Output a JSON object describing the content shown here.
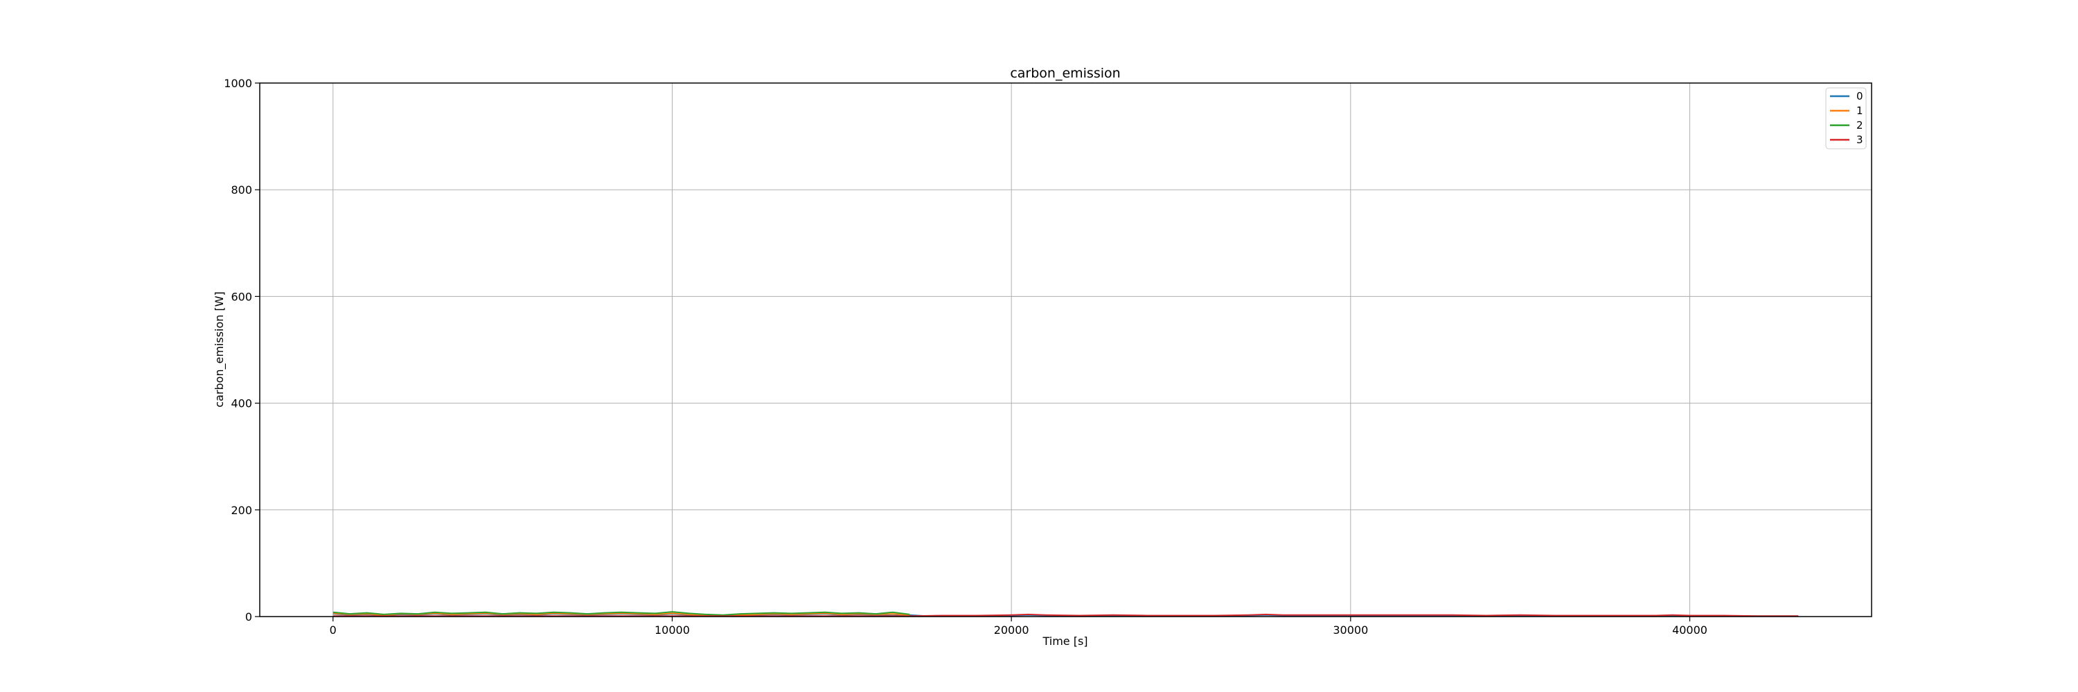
{
  "chart_data": {
    "type": "line",
    "title": "carbon_emission",
    "xlabel": "Time [s]",
    "ylabel": "carbon_emission [W]",
    "xlim": [
      -2160,
      45360
    ],
    "ylim": [
      0,
      1000
    ],
    "xticks": [
      0,
      10000,
      20000,
      30000,
      40000
    ],
    "yticks": [
      0,
      200,
      400,
      600,
      800,
      1000
    ],
    "grid": true,
    "legend_position": "top-right",
    "series": [
      {
        "name": "0",
        "color": "#1f77b4",
        "x": [
          0,
          500,
          1000,
          1500,
          2000,
          2500,
          3000,
          3500,
          4000,
          4500,
          5000,
          5500,
          6000,
          6500,
          7000,
          7500,
          8000,
          8500,
          9000,
          9500,
          10000,
          10500,
          11000,
          11500,
          12000,
          12500,
          13000,
          13500,
          14000,
          14500,
          15000,
          15500,
          16000,
          16500,
          17000,
          17500,
          18000,
          18500,
          19000,
          19500,
          20000,
          20500,
          21000,
          21500,
          22000,
          22500,
          23000,
          23500,
          24000,
          24500,
          25000,
          25500,
          26000,
          26500,
          27000,
          27500,
          28000,
          28500,
          29000,
          29500,
          30000,
          30500,
          31000,
          31500,
          32000,
          32500,
          33000,
          33500,
          34000,
          34500,
          35000,
          35500,
          36000,
          36500,
          37000,
          37500,
          38000,
          38500,
          39000,
          39500,
          40000,
          40500,
          41000,
          41500,
          42000,
          42500,
          43200
        ],
        "y": [
          5,
          3,
          4,
          2,
          4,
          3,
          5,
          3,
          4,
          5,
          3,
          4,
          3,
          5,
          4,
          3,
          4,
          5,
          4,
          3,
          5,
          3,
          2,
          1,
          2,
          3,
          4,
          3,
          4,
          5,
          3,
          4,
          3,
          2,
          3,
          1,
          2,
          1,
          2,
          1,
          2,
          3,
          2,
          1,
          2,
          1,
          2,
          1,
          1,
          1,
          2,
          1,
          2,
          1,
          2,
          3,
          2,
          1,
          2,
          1,
          2,
          2,
          1,
          2,
          2,
          1,
          2,
          1,
          1,
          1,
          2,
          1,
          2,
          1,
          1,
          1,
          1,
          1,
          1,
          1,
          1,
          1,
          1,
          1,
          1,
          1,
          1
        ]
      },
      {
        "name": "1",
        "color": "#ff7f0e",
        "x": [
          0,
          500,
          1000,
          1500,
          2000,
          2500,
          3000,
          3500,
          4000,
          4500,
          5000,
          5500,
          6000,
          6500,
          7000,
          7500,
          8000,
          8500,
          9000,
          9500,
          10000,
          10500,
          11000,
          11500,
          12000,
          12500,
          13000,
          13500,
          14000,
          14500,
          15000,
          15500,
          16000,
          16500,
          17000
        ],
        "y": [
          6,
          4,
          5,
          3,
          5,
          4,
          6,
          4,
          5,
          6,
          4,
          5,
          4,
          6,
          5,
          4,
          5,
          6,
          5,
          4,
          6,
          4,
          3,
          2,
          3,
          4,
          5,
          4,
          5,
          6,
          4,
          5,
          4,
          5,
          3
        ]
      },
      {
        "name": "2",
        "color": "#2ca02c",
        "x": [
          0,
          500,
          1000,
          1500,
          2000,
          2500,
          3000,
          3500,
          4000,
          4500,
          5000,
          5500,
          6000,
          6500,
          7000,
          7500,
          8000,
          8500,
          9000,
          9500,
          10000,
          10500,
          11000,
          11500,
          12000,
          12500,
          13000,
          13500,
          14000,
          14500,
          15000,
          15500,
          16000,
          16500,
          17000
        ],
        "y": [
          8,
          5,
          7,
          4,
          6,
          5,
          8,
          6,
          7,
          8,
          5,
          7,
          6,
          8,
          7,
          5,
          7,
          8,
          7,
          6,
          9,
          6,
          4,
          3,
          5,
          6,
          7,
          6,
          7,
          8,
          6,
          7,
          5,
          8,
          4
        ]
      },
      {
        "name": "3",
        "color": "#d62728",
        "x": [
          0,
          2000,
          4000,
          6000,
          8000,
          10000,
          11000,
          12000,
          14000,
          16000,
          17000,
          18000,
          19000,
          20000,
          20500,
          21000,
          22000,
          23000,
          24000,
          25000,
          26000,
          27000,
          27500,
          28000,
          29000,
          30000,
          31000,
          32000,
          33000,
          34000,
          35000,
          36000,
          37000,
          38000,
          39000,
          39500,
          40000,
          41000,
          42000,
          43200
        ],
        "y": [
          1,
          1,
          1,
          1,
          1,
          1,
          1,
          1,
          1,
          1,
          1,
          2,
          2,
          3,
          4,
          3,
          2,
          3,
          2,
          2,
          2,
          3,
          4,
          3,
          3,
          3,
          3,
          3,
          3,
          2,
          3,
          2,
          2,
          2,
          2,
          3,
          2,
          2,
          1,
          1
        ]
      }
    ]
  }
}
